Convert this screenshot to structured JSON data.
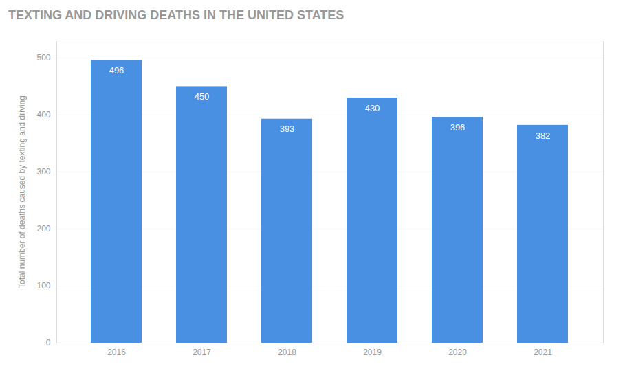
{
  "chart_data": {
    "type": "bar",
    "title": "TEXTING AND DRIVING DEATHS IN THE UNITED STATES",
    "y_label": "Total number of deaths caused by texting and driving",
    "categories": [
      "2016",
      "2017",
      "2018",
      "2019",
      "2020",
      "2021"
    ],
    "values": [
      496,
      450,
      393,
      430,
      396,
      382
    ],
    "color": "#4a90e2",
    "ylim": [
      0,
      530
    ],
    "yticks": [
      0,
      100,
      200,
      300,
      400,
      500
    ],
    "grid": true,
    "data_labels": true
  }
}
